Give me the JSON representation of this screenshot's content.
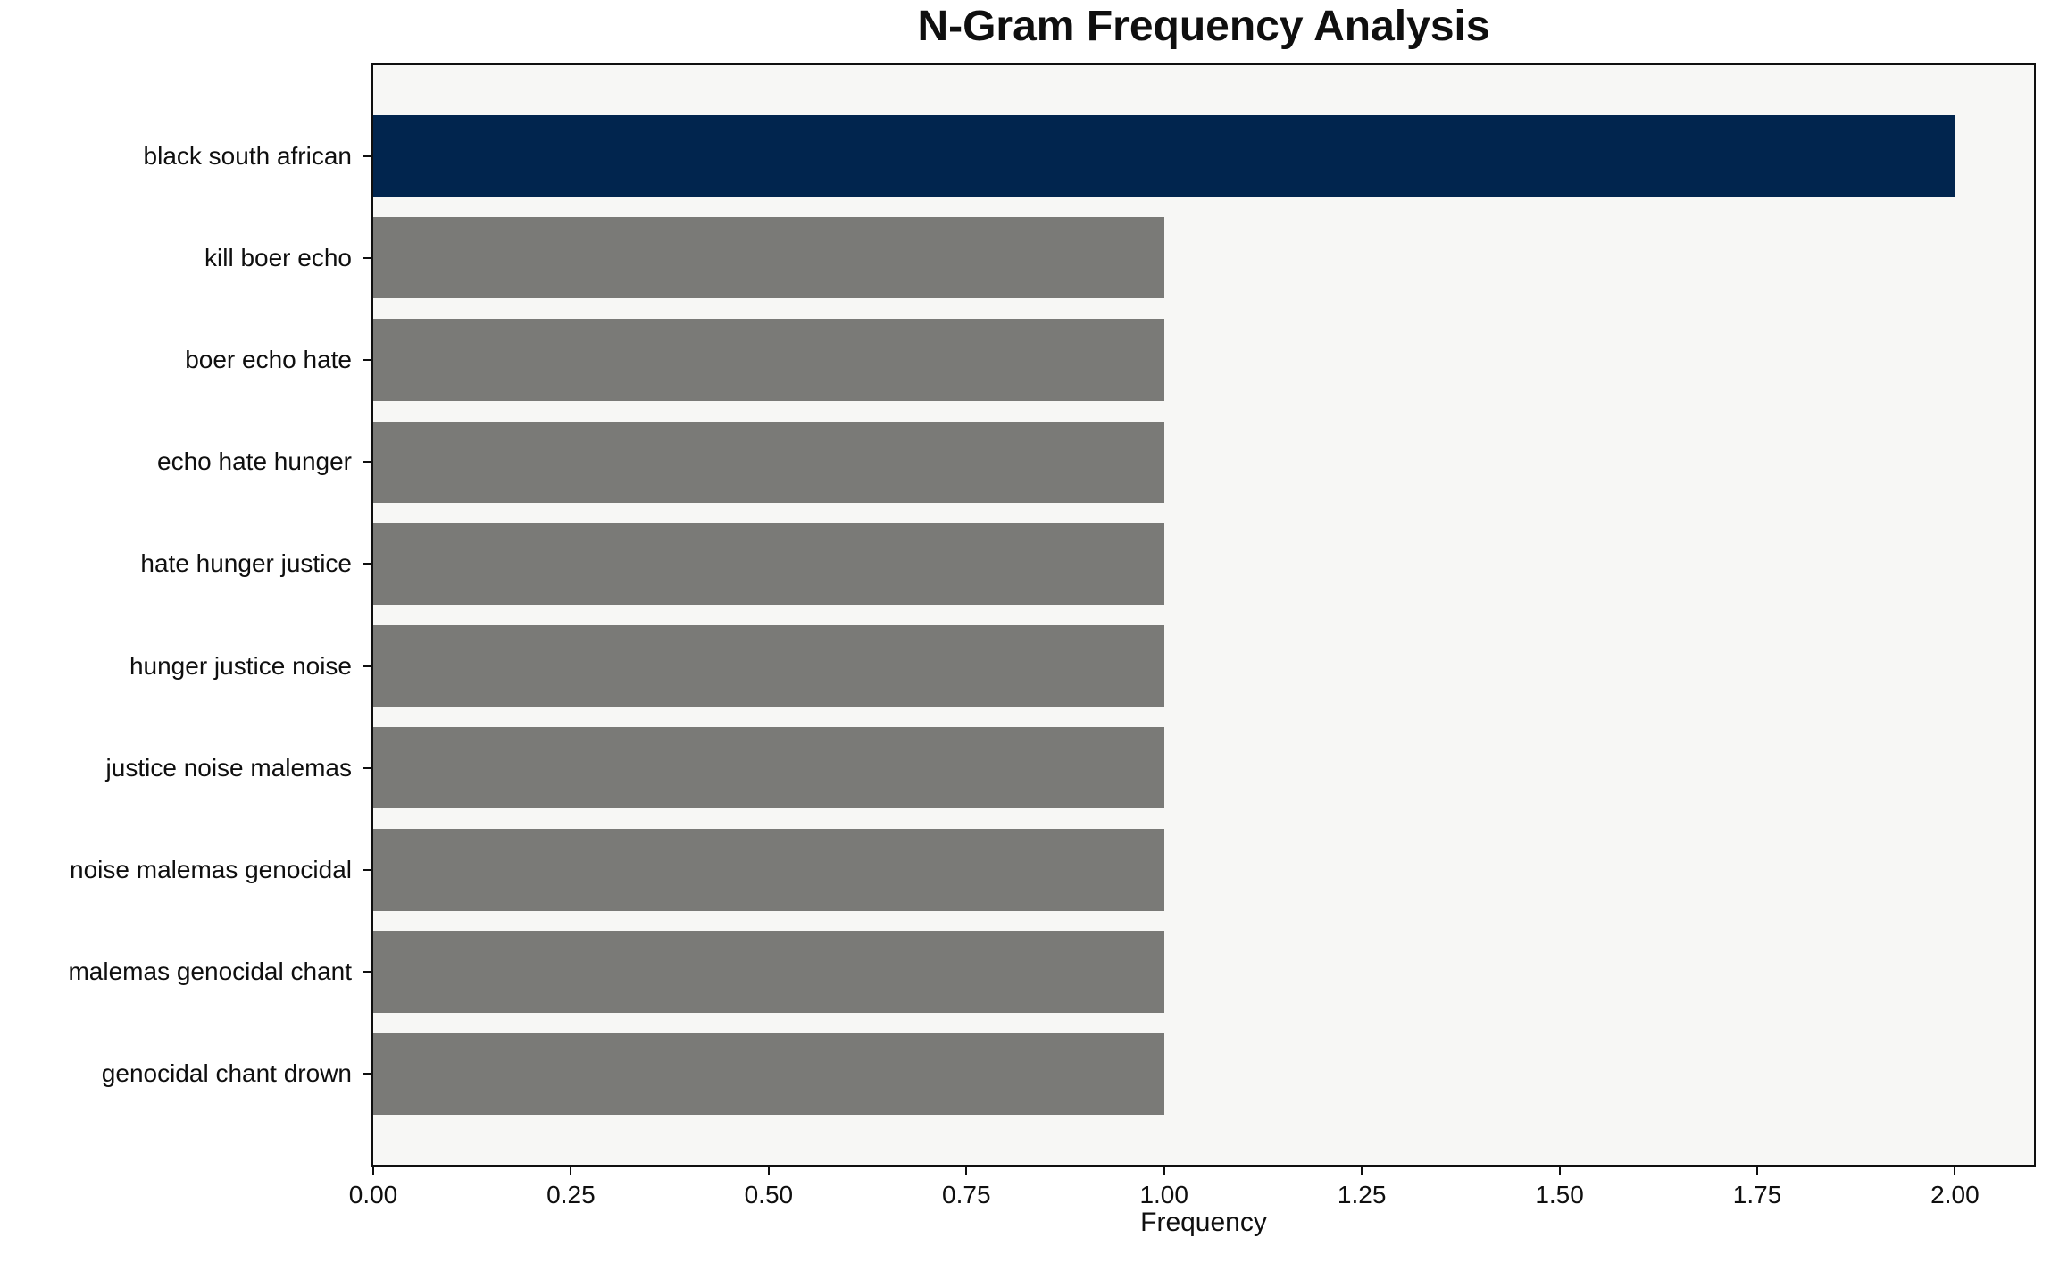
{
  "title": "N-Gram Frequency Analysis",
  "chart_data": {
    "type": "bar",
    "orientation": "horizontal",
    "title": "N-Gram Frequency Analysis",
    "xlabel": "Frequency",
    "ylabel": "",
    "categories": [
      "black south african",
      "kill boer echo",
      "boer echo hate",
      "echo hate hunger",
      "hate hunger justice",
      "hunger justice noise",
      "justice noise malemas",
      "noise malemas genocidal",
      "malemas genocidal chant",
      "genocidal chant drown"
    ],
    "values": [
      2,
      1,
      1,
      1,
      1,
      1,
      1,
      1,
      1,
      1
    ],
    "bar_colors": [
      "#01254e",
      "#7a7a77",
      "#7a7a77",
      "#7a7a77",
      "#7a7a77",
      "#7a7a77",
      "#7a7a77",
      "#7a7a77",
      "#7a7a77",
      "#7a7a77"
    ],
    "highlight_color": "#01254e",
    "default_color": "#7a7a77",
    "plot_background": "#f7f7f5",
    "spine_color": "#0f0f0f",
    "xlim": [
      0,
      2.1
    ],
    "xtick_labels": [
      "0.00",
      "0.25",
      "0.50",
      "0.75",
      "1.00",
      "1.25",
      "1.50",
      "1.75",
      "2.00"
    ],
    "grid": false,
    "legend": null
  }
}
